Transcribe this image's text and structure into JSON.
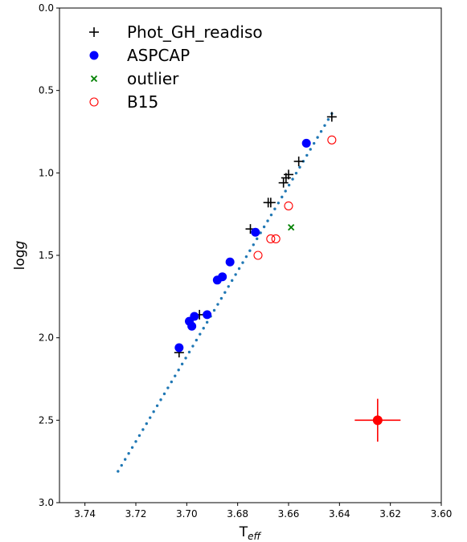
{
  "chart_data": {
    "type": "scatter",
    "xlabel_main": "T",
    "xlabel_sub": "eff",
    "ylabel_main": "log",
    "ylabel_italic": "g",
    "xlim": [
      3.75,
      3.6
    ],
    "ylim": [
      3.0,
      0.0
    ],
    "x_inverted": true,
    "y_inverted": true,
    "x_ticks": [
      "3.74",
      "3.72",
      "3.70",
      "3.68",
      "3.66",
      "3.64",
      "3.62",
      "3.60"
    ],
    "x_tick_values": [
      3.74,
      3.72,
      3.7,
      3.68,
      3.66,
      3.64,
      3.62,
      3.6
    ],
    "y_ticks": [
      "0.0",
      "0.5",
      "1.0",
      "1.5",
      "2.0",
      "2.5",
      "3.0"
    ],
    "y_tick_values": [
      0.0,
      0.5,
      1.0,
      1.5,
      2.0,
      2.5,
      3.0
    ],
    "grid": false,
    "legend_position": "top-left",
    "series": [
      {
        "name": "Phot_GH_readiso",
        "marker": "plus",
        "color": "#000000",
        "points": [
          {
            "x": 3.643,
            "y": 0.66
          },
          {
            "x": 3.656,
            "y": 0.93
          },
          {
            "x": 3.66,
            "y": 1.01
          },
          {
            "x": 3.661,
            "y": 1.03
          },
          {
            "x": 3.662,
            "y": 1.06
          },
          {
            "x": 3.667,
            "y": 1.18
          },
          {
            "x": 3.668,
            "y": 1.18
          },
          {
            "x": 3.675,
            "y": 1.34
          },
          {
            "x": 3.695,
            "y": 1.86
          },
          {
            "x": 3.703,
            "y": 2.09
          }
        ]
      },
      {
        "name": "ASPCAP",
        "marker": "filled-circle",
        "color": "#0000ff",
        "points": [
          {
            "x": 3.653,
            "y": 0.82
          },
          {
            "x": 3.673,
            "y": 1.36
          },
          {
            "x": 3.683,
            "y": 1.54
          },
          {
            "x": 3.686,
            "y": 1.63
          },
          {
            "x": 3.688,
            "y": 1.65
          },
          {
            "x": 3.692,
            "y": 1.86
          },
          {
            "x": 3.697,
            "y": 1.87
          },
          {
            "x": 3.699,
            "y": 1.9
          },
          {
            "x": 3.698,
            "y": 1.93
          },
          {
            "x": 3.703,
            "y": 2.06
          }
        ]
      },
      {
        "name": "outlier",
        "marker": "x",
        "color": "#008000",
        "points": [
          {
            "x": 3.659,
            "y": 1.33
          }
        ]
      },
      {
        "name": "B15",
        "marker": "open-circle",
        "color": "#ff0000",
        "points": [
          {
            "x": 3.643,
            "y": 0.8
          },
          {
            "x": 3.66,
            "y": 1.2
          },
          {
            "x": 3.665,
            "y": 1.4
          },
          {
            "x": 3.667,
            "y": 1.4
          },
          {
            "x": 3.672,
            "y": 1.5
          }
        ]
      }
    ],
    "isochrone": {
      "style": "dotted",
      "color": "#1f77b4",
      "x_start": 3.727,
      "y_start": 2.81,
      "x_end": 3.643,
      "y_end": 0.64
    },
    "error_bar": {
      "color": "#ff0000",
      "x": 3.625,
      "y": 2.5,
      "x_err": 0.009,
      "y_err": 0.13
    }
  }
}
